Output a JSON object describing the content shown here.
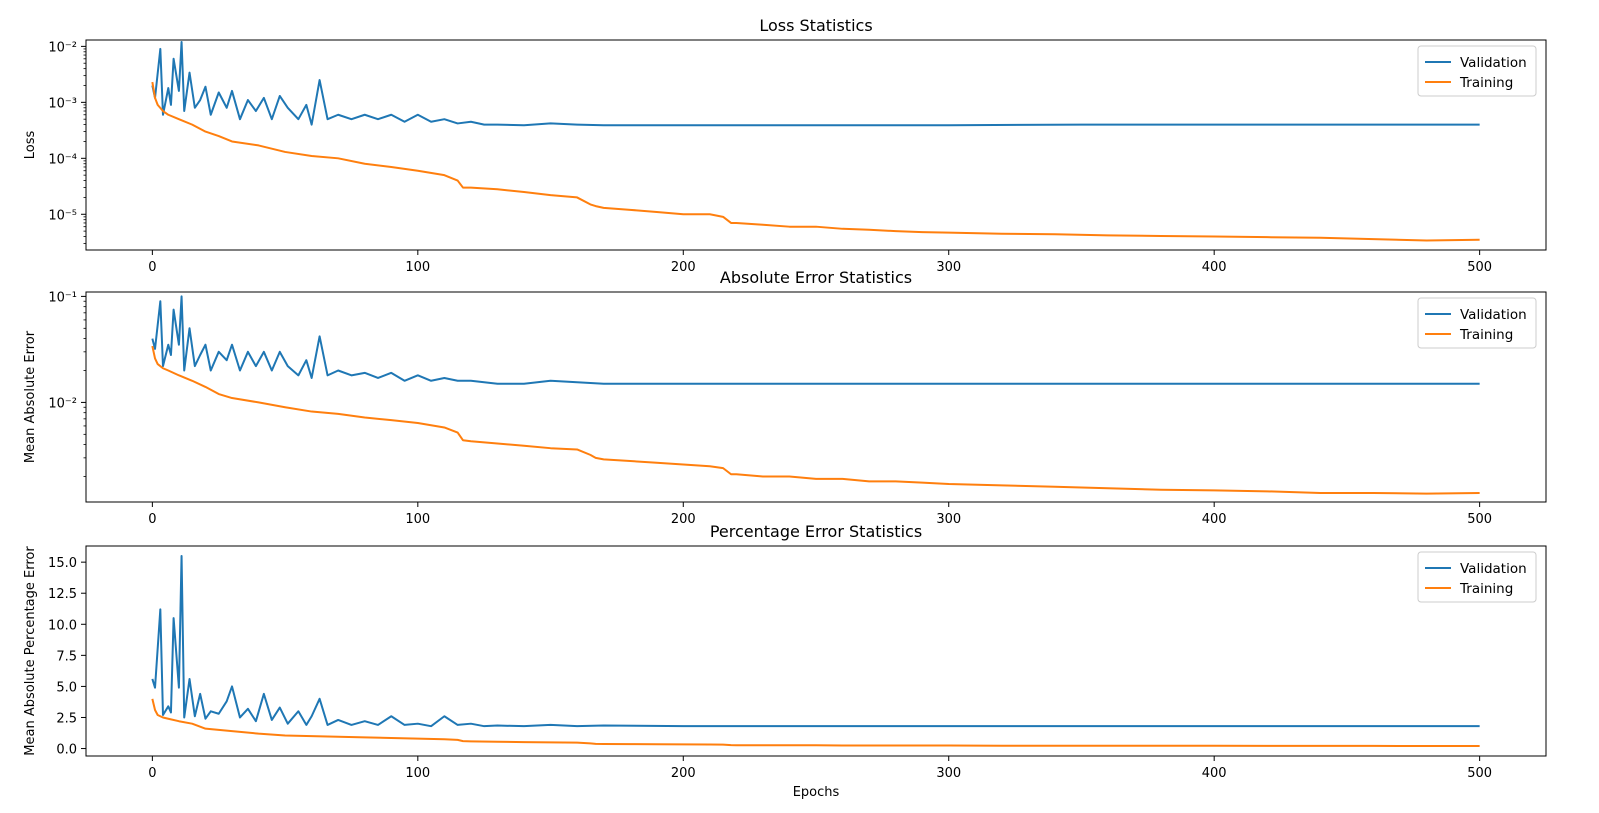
{
  "chart_data": [
    {
      "type": "line",
      "title": "Loss Statistics",
      "xlabel": "",
      "ylabel": "Loss",
      "yscale": "log",
      "xlim": [
        -25,
        525
      ],
      "ylim": [
        2.3e-06,
        0.013
      ],
      "x_ticks": [
        0,
        100,
        200,
        300,
        400,
        500
      ],
      "x_tick_labels": [
        "0",
        "100",
        "200",
        "300",
        "400",
        "500"
      ],
      "y_ticks": [
        1e-05,
        0.0001,
        0.001,
        0.01
      ],
      "y_tick_labels": [
        "10⁻⁵",
        "10⁻⁴",
        "10⁻³",
        "10⁻²"
      ],
      "legend": "top-right",
      "grid": false,
      "series": [
        {
          "name": "Validation",
          "color": "#1f77b4",
          "x": [
            0,
            1,
            3,
            4,
            6,
            7,
            8,
            10,
            11,
            12,
            14,
            16,
            18,
            20,
            22,
            25,
            28,
            30,
            33,
            36,
            39,
            42,
            45,
            48,
            51,
            55,
            58,
            60,
            63,
            66,
            70,
            75,
            80,
            85,
            90,
            95,
            100,
            105,
            110,
            115,
            120,
            125,
            130,
            140,
            150,
            160,
            170,
            200,
            250,
            300,
            350,
            400,
            450,
            500
          ],
          "y": [
            0.002,
            0.0012,
            0.009,
            0.0006,
            0.0018,
            0.0009,
            0.006,
            0.0016,
            0.012,
            0.0007,
            0.0034,
            0.0008,
            0.0011,
            0.0019,
            0.0006,
            0.0015,
            0.0008,
            0.0016,
            0.0005,
            0.0011,
            0.0007,
            0.0012,
            0.0005,
            0.0013,
            0.0008,
            0.0005,
            0.0009,
            0.0004,
            0.0025,
            0.0005,
            0.0006,
            0.0005,
            0.0006,
            0.0005,
            0.0006,
            0.00045,
            0.0006,
            0.00045,
            0.0005,
            0.00042,
            0.00045,
            0.0004,
            0.0004,
            0.00039,
            0.00042,
            0.0004,
            0.00039,
            0.00039,
            0.00039,
            0.00039,
            0.0004,
            0.0004,
            0.0004,
            0.0004
          ]
        },
        {
          "name": "Training",
          "color": "#ff7f0e",
          "x": [
            0,
            1,
            2,
            4,
            6,
            10,
            15,
            20,
            25,
            30,
            40,
            50,
            60,
            70,
            80,
            90,
            100,
            110,
            115,
            117,
            120,
            130,
            140,
            150,
            160,
            165,
            167,
            170,
            180,
            190,
            200,
            210,
            215,
            218,
            220,
            230,
            240,
            250,
            260,
            270,
            280,
            290,
            300,
            320,
            340,
            360,
            380,
            400,
            420,
            440,
            460,
            480,
            500
          ],
          "y": [
            0.0023,
            0.0012,
            0.0009,
            0.0007,
            0.0006,
            0.0005,
            0.0004,
            0.0003,
            0.00025,
            0.0002,
            0.00017,
            0.00013,
            0.00011,
            0.0001,
            8e-05,
            7e-05,
            6e-05,
            5e-05,
            4e-05,
            3e-05,
            3e-05,
            2.8e-05,
            2.5e-05,
            2.2e-05,
            2e-05,
            1.5e-05,
            1.4e-05,
            1.3e-05,
            1.2e-05,
            1.1e-05,
            1e-05,
            1e-05,
            9e-06,
            7e-06,
            7e-06,
            6.5e-06,
            6e-06,
            6e-06,
            5.5e-06,
            5.3e-06,
            5e-06,
            4.8e-06,
            4.7e-06,
            4.5e-06,
            4.4e-06,
            4.2e-06,
            4.1e-06,
            4e-06,
            3.9e-06,
            3.8e-06,
            3.6e-06,
            3.4e-06,
            3.5e-06
          ]
        }
      ]
    },
    {
      "type": "line",
      "title": "Absolute Error Statistics",
      "xlabel": "",
      "ylabel": "Mean Absolute Error",
      "yscale": "log",
      "xlim": [
        -25,
        525
      ],
      "ylim": [
        0.00115,
        0.11
      ],
      "x_ticks": [
        0,
        100,
        200,
        300,
        400,
        500
      ],
      "x_tick_labels": [
        "0",
        "100",
        "200",
        "300",
        "400",
        "500"
      ],
      "y_ticks": [
        0.01,
        0.1
      ],
      "y_tick_labels": [
        "10⁻²",
        "10⁻¹"
      ],
      "legend": "top-right",
      "grid": false,
      "series": [
        {
          "name": "Validation",
          "color": "#1f77b4",
          "x": [
            0,
            1,
            3,
            4,
            6,
            7,
            8,
            10,
            11,
            12,
            14,
            16,
            18,
            20,
            22,
            25,
            28,
            30,
            33,
            36,
            39,
            42,
            45,
            48,
            51,
            55,
            58,
            60,
            63,
            66,
            70,
            75,
            80,
            85,
            90,
            95,
            100,
            105,
            110,
            115,
            120,
            125,
            130,
            140,
            150,
            160,
            170,
            200,
            250,
            300,
            350,
            400,
            450,
            500
          ],
          "y": [
            0.04,
            0.032,
            0.09,
            0.022,
            0.035,
            0.028,
            0.075,
            0.035,
            0.1,
            0.02,
            0.05,
            0.022,
            0.028,
            0.035,
            0.02,
            0.03,
            0.025,
            0.035,
            0.02,
            0.03,
            0.022,
            0.03,
            0.02,
            0.03,
            0.022,
            0.018,
            0.025,
            0.017,
            0.042,
            0.018,
            0.02,
            0.018,
            0.019,
            0.017,
            0.019,
            0.016,
            0.018,
            0.016,
            0.017,
            0.016,
            0.016,
            0.0155,
            0.015,
            0.015,
            0.016,
            0.0155,
            0.015,
            0.015,
            0.015,
            0.015,
            0.015,
            0.015,
            0.015,
            0.015
          ]
        },
        {
          "name": "Training",
          "color": "#ff7f0e",
          "x": [
            0,
            1,
            2,
            4,
            6,
            10,
            15,
            20,
            25,
            30,
            40,
            50,
            60,
            70,
            80,
            90,
            100,
            110,
            115,
            117,
            120,
            130,
            140,
            150,
            160,
            165,
            167,
            170,
            180,
            190,
            200,
            210,
            215,
            218,
            220,
            230,
            240,
            250,
            260,
            270,
            280,
            290,
            300,
            320,
            340,
            360,
            380,
            400,
            420,
            440,
            460,
            480,
            500
          ],
          "y": [
            0.034,
            0.026,
            0.023,
            0.021,
            0.02,
            0.018,
            0.016,
            0.014,
            0.012,
            0.011,
            0.01,
            0.009,
            0.0082,
            0.0078,
            0.0072,
            0.0068,
            0.0064,
            0.0058,
            0.0052,
            0.0044,
            0.0043,
            0.0041,
            0.0039,
            0.0037,
            0.0036,
            0.0032,
            0.003,
            0.0029,
            0.0028,
            0.0027,
            0.0026,
            0.0025,
            0.0024,
            0.0021,
            0.0021,
            0.002,
            0.002,
            0.0019,
            0.0019,
            0.0018,
            0.0018,
            0.00175,
            0.0017,
            0.00165,
            0.0016,
            0.00155,
            0.0015,
            0.00148,
            0.00145,
            0.0014,
            0.0014,
            0.00138,
            0.0014
          ]
        }
      ]
    },
    {
      "type": "line",
      "title": "Percentage Error Statistics",
      "xlabel": "Epochs",
      "ylabel": "Mean Absolute Percentage Error",
      "yscale": "linear",
      "xlim": [
        -25,
        525
      ],
      "ylim": [
        -0.6,
        16.3
      ],
      "x_ticks": [
        0,
        100,
        200,
        300,
        400,
        500
      ],
      "x_tick_labels": [
        "0",
        "100",
        "200",
        "300",
        "400",
        "500"
      ],
      "y_ticks": [
        0,
        2.5,
        5,
        7.5,
        10,
        12.5,
        15
      ],
      "y_tick_labels": [
        "0.0",
        "2.5",
        "5.0",
        "7.5",
        "10.0",
        "12.5",
        "15.0"
      ],
      "legend": "top-right",
      "grid": false,
      "series": [
        {
          "name": "Validation",
          "color": "#1f77b4",
          "x": [
            0,
            1,
            3,
            4,
            6,
            7,
            8,
            10,
            11,
            12,
            14,
            16,
            18,
            20,
            22,
            25,
            28,
            30,
            33,
            36,
            39,
            42,
            45,
            48,
            51,
            55,
            58,
            60,
            63,
            66,
            70,
            75,
            80,
            85,
            90,
            95,
            100,
            105,
            110,
            115,
            120,
            125,
            130,
            140,
            150,
            160,
            170,
            200,
            250,
            300,
            350,
            400,
            450,
            500
          ],
          "y": [
            5.6,
            4.9,
            11.2,
            2.7,
            3.4,
            2.9,
            10.5,
            4.9,
            15.5,
            2.5,
            5.6,
            2.6,
            4.4,
            2.4,
            3.0,
            2.8,
            3.8,
            5.0,
            2.5,
            3.2,
            2.2,
            4.4,
            2.3,
            3.3,
            2.0,
            3.0,
            1.9,
            2.6,
            4.0,
            1.9,
            2.3,
            1.9,
            2.2,
            1.9,
            2.6,
            1.9,
            2.0,
            1.8,
            2.6,
            1.9,
            2.0,
            1.8,
            1.85,
            1.8,
            1.9,
            1.8,
            1.85,
            1.8,
            1.8,
            1.8,
            1.8,
            1.8,
            1.8,
            1.8
          ]
        },
        {
          "name": "Training",
          "color": "#ff7f0e",
          "x": [
            0,
            1,
            2,
            4,
            6,
            10,
            15,
            20,
            25,
            30,
            40,
            50,
            60,
            70,
            80,
            90,
            100,
            110,
            115,
            117,
            120,
            130,
            140,
            150,
            160,
            165,
            167,
            170,
            180,
            190,
            200,
            210,
            215,
            218,
            220,
            230,
            240,
            250,
            260,
            270,
            280,
            290,
            300,
            320,
            340,
            360,
            380,
            400,
            420,
            440,
            460,
            480,
            500
          ],
          "y": [
            4.0,
            3.1,
            2.7,
            2.5,
            2.4,
            2.2,
            2.0,
            1.6,
            1.5,
            1.4,
            1.2,
            1.05,
            1.0,
            0.95,
            0.9,
            0.85,
            0.8,
            0.75,
            0.7,
            0.6,
            0.58,
            0.55,
            0.52,
            0.5,
            0.48,
            0.42,
            0.38,
            0.37,
            0.36,
            0.35,
            0.34,
            0.33,
            0.32,
            0.28,
            0.27,
            0.27,
            0.26,
            0.26,
            0.25,
            0.25,
            0.24,
            0.24,
            0.24,
            0.23,
            0.23,
            0.22,
            0.22,
            0.22,
            0.21,
            0.21,
            0.21,
            0.2,
            0.2
          ]
        }
      ]
    }
  ]
}
